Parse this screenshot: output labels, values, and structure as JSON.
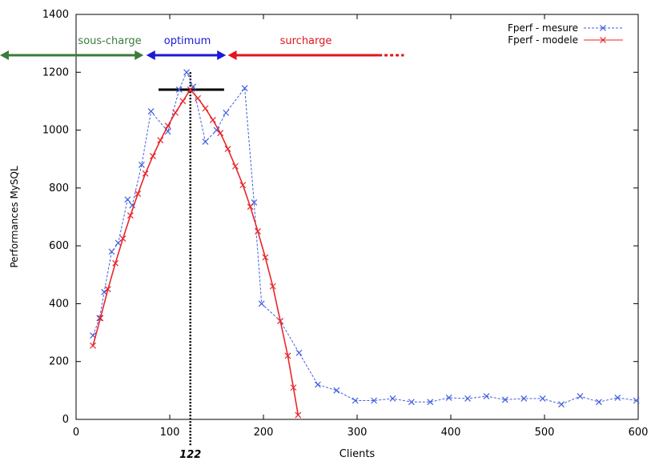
{
  "chart_data": {
    "type": "line",
    "xlabel": "Clients",
    "ylabel": "Performances MySQL",
    "xlim": [
      0,
      600
    ],
    "ylim": [
      0,
      1400
    ],
    "x_ticks": [
      0,
      100,
      200,
      300,
      400,
      500,
      600
    ],
    "y_ticks": [
      0,
      200,
      400,
      600,
      800,
      1000,
      1200,
      1400
    ],
    "grid": false,
    "legend_position": "top-right",
    "series": [
      {
        "name": "Fperf - mesure",
        "color": "#3f5fe0",
        "style": "dashed",
        "marker": "x",
        "points": [
          [
            18,
            290
          ],
          [
            25,
            350
          ],
          [
            30,
            440
          ],
          [
            38,
            580
          ],
          [
            45,
            610
          ],
          [
            55,
            760
          ],
          [
            60,
            740
          ],
          [
            70,
            880
          ],
          [
            80,
            1065
          ],
          [
            98,
            995
          ],
          [
            110,
            1140
          ],
          [
            118,
            1200
          ],
          [
            125,
            1150
          ],
          [
            138,
            960
          ],
          [
            150,
            1000
          ],
          [
            160,
            1060
          ],
          [
            180,
            1145
          ],
          [
            190,
            750
          ],
          [
            198,
            400
          ],
          [
            218,
            340
          ],
          [
            238,
            230
          ],
          [
            258,
            120
          ],
          [
            278,
            100
          ],
          [
            298,
            65
          ],
          [
            318,
            65
          ],
          [
            338,
            72
          ],
          [
            358,
            60
          ],
          [
            378,
            60
          ],
          [
            398,
            75
          ],
          [
            418,
            72
          ],
          [
            438,
            80
          ],
          [
            458,
            68
          ],
          [
            478,
            72
          ],
          [
            498,
            72
          ],
          [
            518,
            52
          ],
          [
            538,
            80
          ],
          [
            558,
            60
          ],
          [
            578,
            75
          ],
          [
            598,
            65
          ]
        ]
      },
      {
        "name": "Fperf - modele",
        "color": "#e8262a",
        "style": "solid",
        "marker": "x",
        "points": [
          [
            18,
            255
          ],
          [
            26,
            350
          ],
          [
            34,
            450
          ],
          [
            42,
            540
          ],
          [
            50,
            625
          ],
          [
            58,
            705
          ],
          [
            66,
            780
          ],
          [
            74,
            850
          ],
          [
            82,
            910
          ],
          [
            90,
            965
          ],
          [
            98,
            1015
          ],
          [
            106,
            1060
          ],
          [
            114,
            1100
          ],
          [
            122,
            1140
          ],
          [
            130,
            1110
          ],
          [
            138,
            1075
          ],
          [
            146,
            1035
          ],
          [
            154,
            990
          ],
          [
            162,
            935
          ],
          [
            170,
            875
          ],
          [
            178,
            810
          ],
          [
            186,
            735
          ],
          [
            194,
            650
          ],
          [
            202,
            560
          ],
          [
            210,
            460
          ],
          [
            218,
            340
          ],
          [
            226,
            220
          ],
          [
            232,
            110
          ],
          [
            237,
            15
          ]
        ]
      }
    ],
    "optimum_x": 122,
    "optimum_label": "122",
    "peak_bar": {
      "x_from": 88,
      "x_to": 158,
      "y": 1140
    },
    "zones": [
      {
        "label": "sous-charge",
        "x_from": 0,
        "x_to": 72,
        "color": "#3c7a3c"
      },
      {
        "label": "optimum",
        "x_from": 75,
        "x_to": 160,
        "color": "#1a1ad8"
      },
      {
        "label": "surcharge",
        "x_from": 162,
        "x_to": 330,
        "color": "#e0161c",
        "dotted_to": 350
      }
    ]
  }
}
